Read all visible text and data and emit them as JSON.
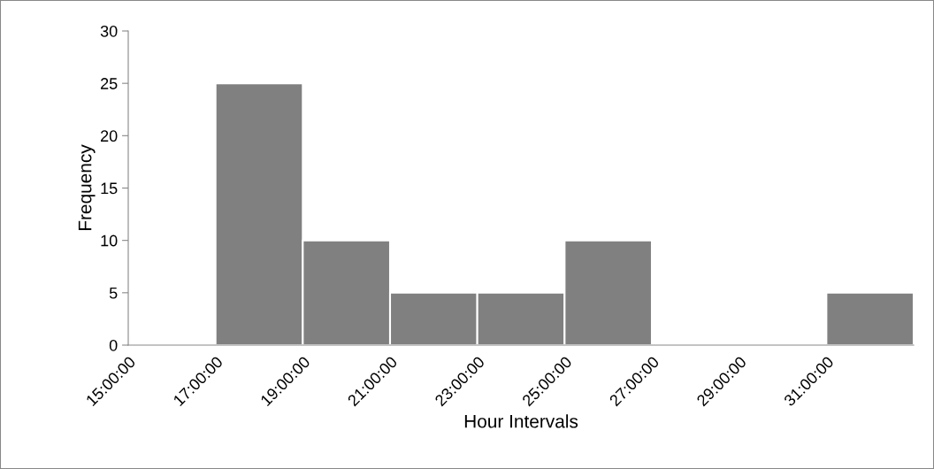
{
  "chart_data": {
    "type": "histogram",
    "xlabel": "Hour Intervals",
    "ylabel": "Frequency",
    "bins": [
      15,
      17,
      19,
      21,
      23,
      25,
      27,
      29,
      31,
      33
    ],
    "values": [
      0,
      25,
      10,
      5,
      5,
      10,
      0,
      0,
      5
    ],
    "color": "#808080",
    "xlim": [
      15,
      33
    ],
    "xticks": [
      {
        "value": 15,
        "label": "15:00:00"
      },
      {
        "value": 17,
        "label": "17:00:00"
      },
      {
        "value": 19,
        "label": "19:00:00"
      },
      {
        "value": 21,
        "label": "21:00:00"
      },
      {
        "value": 23,
        "label": "23:00:00"
      },
      {
        "value": 25,
        "label": "25:00:00"
      },
      {
        "value": 27,
        "label": "27:00:00"
      },
      {
        "value": 29,
        "label": "29:00:00"
      },
      {
        "value": 31,
        "label": "31:00:00"
      }
    ],
    "ylim": [
      0,
      30
    ],
    "yticks": [
      0,
      5,
      10,
      15,
      20,
      25,
      30
    ],
    "grid": false
  }
}
